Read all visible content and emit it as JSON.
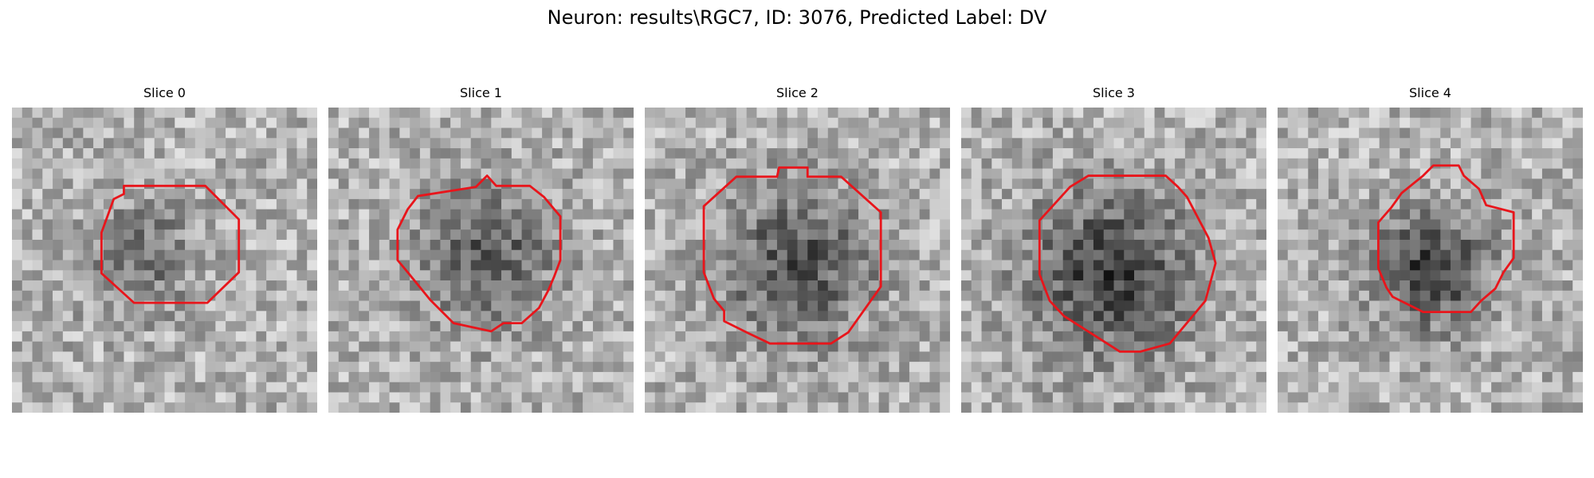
{
  "figure": {
    "title": "Neuron: results\\RGC7, ID: 3076, Predicted Label: DV"
  },
  "panels": [
    {
      "label": "Slice 0"
    },
    {
      "label": "Slice 1"
    },
    {
      "label": "Slice 2"
    },
    {
      "label": "Slice 3"
    },
    {
      "label": "Slice 4"
    }
  ],
  "colors": {
    "contour": "#e8151b",
    "background": "#ffffff"
  }
}
